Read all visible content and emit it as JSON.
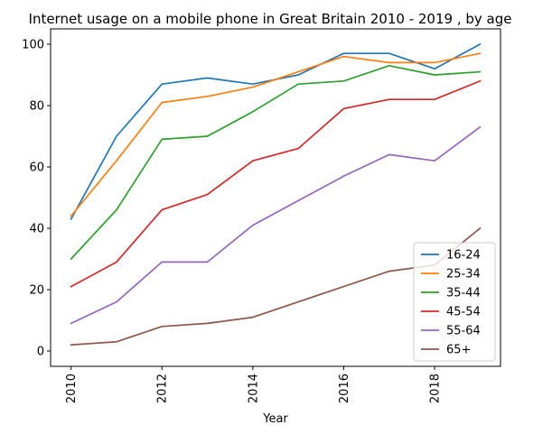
{
  "chart_data": {
    "type": "line",
    "title": "Internet usage on a mobile phone in Great Britain 2010 - 2019 , by age",
    "xlabel": "Year",
    "ylabel": "",
    "x": [
      2010,
      2011,
      2012,
      2013,
      2014,
      2015,
      2016,
      2017,
      2018,
      2019
    ],
    "xlim": [
      2009.55,
      2019.45
    ],
    "ylim": [
      -5,
      105
    ],
    "xticks": [
      2010,
      2012,
      2014,
      2016,
      2018
    ],
    "xtick_labels": [
      "2010",
      "2012",
      "2014",
      "2016",
      "2018"
    ],
    "yticks": [
      0,
      20,
      40,
      60,
      80,
      100
    ],
    "ytick_labels": [
      "0",
      "20",
      "40",
      "60",
      "80",
      "100"
    ],
    "grid": false,
    "legend_position": "lower-right",
    "series": [
      {
        "name": "16-24",
        "color": "#1f77b4",
        "values": [
          43,
          70,
          87,
          89,
          87,
          90,
          97,
          97,
          92,
          100
        ]
      },
      {
        "name": "25-34",
        "color": "#ff7f0e",
        "values": [
          44,
          62,
          81,
          83,
          86,
          91,
          96,
          94,
          94,
          97
        ]
      },
      {
        "name": "35-44",
        "color": "#2ca02c",
        "values": [
          30,
          46,
          69,
          70,
          78,
          87,
          88,
          93,
          90,
          91
        ]
      },
      {
        "name": "45-54",
        "color": "#d62728",
        "values": [
          21,
          29,
          46,
          51,
          62,
          66,
          79,
          82,
          82,
          88
        ]
      },
      {
        "name": "55-64",
        "color": "#9467bd",
        "values": [
          9,
          16,
          29,
          29,
          41,
          49,
          57,
          64,
          62,
          73
        ]
      },
      {
        "name": "65+",
        "color": "#8c564b",
        "values": [
          2,
          3,
          8,
          9,
          11,
          16,
          21,
          26,
          28,
          40
        ]
      }
    ]
  }
}
